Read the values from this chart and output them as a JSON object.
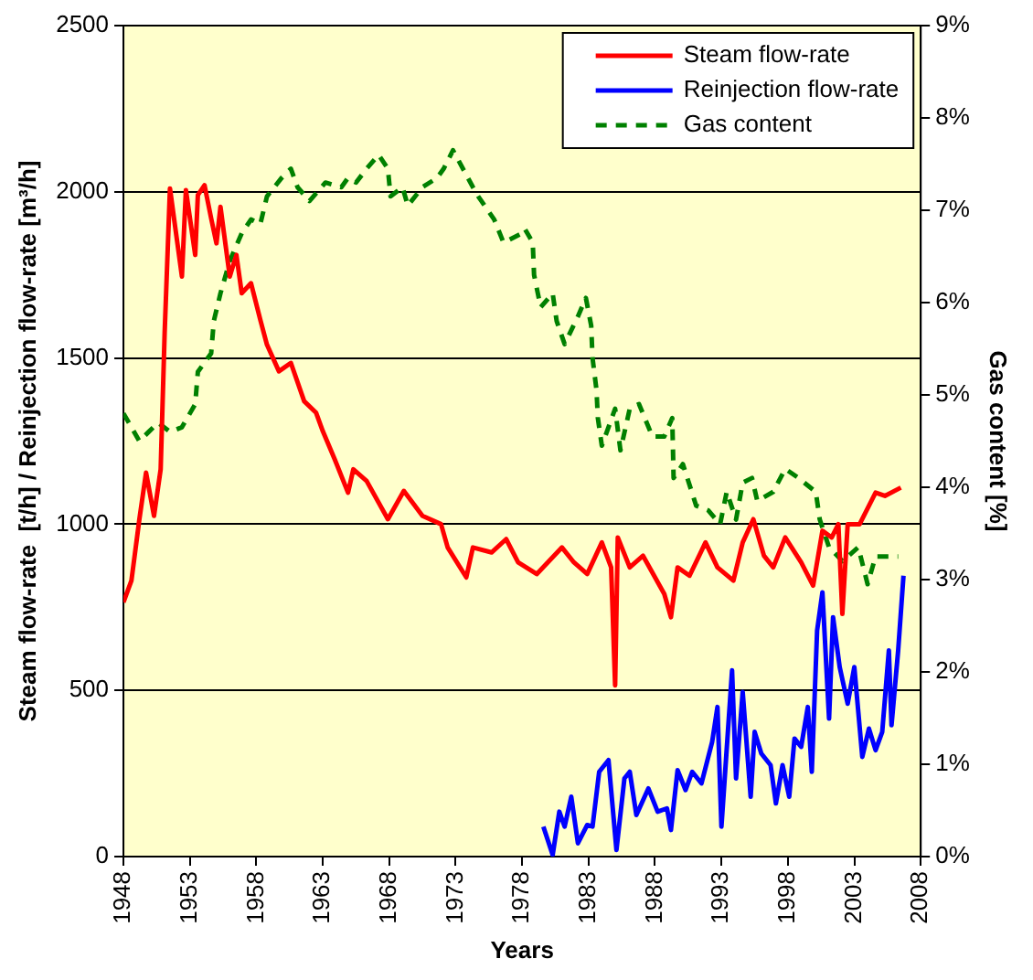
{
  "chart_data": {
    "type": "line",
    "xlabel": "Years",
    "ylabel": "Steam flow-rate  [t/h] / Reinjection flow-rate [m³/h]",
    "y2label": "Gas content [%]",
    "xlim": [
      1948,
      2008
    ],
    "xticks": [
      1948,
      1953,
      1958,
      1963,
      1968,
      1973,
      1978,
      1983,
      1988,
      1993,
      1998,
      2003,
      2008
    ],
    "ylim": [
      0,
      2500
    ],
    "yticks": [
      0,
      500,
      1000,
      1500,
      2000,
      2500
    ],
    "y2lim": [
      0,
      9
    ],
    "y2ticks": [
      {
        "value": 0,
        "label": "0%"
      },
      {
        "value": 1,
        "label": "1%"
      },
      {
        "value": 2,
        "label": "2%"
      },
      {
        "value": 3,
        "label": "3%"
      },
      {
        "value": 4,
        "label": "4%"
      },
      {
        "value": 5,
        "label": "5%"
      },
      {
        "value": 6,
        "label": "6%"
      },
      {
        "value": 7,
        "label": "7%"
      },
      {
        "value": 8,
        "label": "8%"
      },
      {
        "value": 9,
        "label": "9%"
      }
    ],
    "grid": "y",
    "legend": "top right",
    "marker": "none",
    "series": [
      {
        "name": "Steam flow-rate",
        "color": "#ff0000",
        "line_style": "solid",
        "x": [
          1948.0,
          1948.6,
          1949.2,
          1949.7,
          1950.3,
          1950.8,
          1951.1,
          1951.5,
          1952.4,
          1952.7,
          1953.4,
          1953.6,
          1954.1,
          1954.6,
          1955.0,
          1955.3,
          1956.0,
          1956.5,
          1956.9,
          1957.6,
          1958.3,
          1958.8,
          1959.7,
          1960.6,
          1961.6,
          1962.5,
          1963.0,
          1963.9,
          1964.9,
          1965.3,
          1966.3,
          1967.9,
          1969.1,
          1970.5,
          1971.9,
          1972.4,
          1973.8,
          1974.3,
          1975.7,
          1976.8,
          1977.7,
          1979.1,
          1981.0,
          1981.9,
          1982.9,
          1984.0,
          1984.7,
          1985.0,
          1985.2,
          1986.1,
          1987.1,
          1988.7,
          1989.2,
          1989.7,
          1990.6,
          1991.8,
          1992.7,
          1993.9,
          1994.6,
          1995.4,
          1996.2,
          1996.9,
          1997.8,
          1999.0,
          1999.9,
          2000.6,
          2001.3,
          2001.8,
          2002.1,
          2002.5,
          2003.4,
          2004.6,
          2005.3,
          2006.5
        ],
        "values": [
          765,
          830,
          1015,
          1155,
          1025,
          1165,
          1575,
          2010,
          1745,
          2005,
          1810,
          1990,
          2020,
          1920,
          1845,
          1955,
          1745,
          1810,
          1695,
          1725,
          1615,
          1540,
          1460,
          1485,
          1370,
          1335,
          1280,
          1195,
          1095,
          1165,
          1130,
          1015,
          1100,
          1025,
          1000,
          930,
          840,
          930,
          915,
          955,
          885,
          850,
          930,
          885,
          850,
          945,
          870,
          515,
          960,
          870,
          905,
          790,
          720,
          870,
          845,
          945,
          870,
          830,
          945,
          1015,
          905,
          870,
          960,
          885,
          815,
          980,
          960,
          1000,
          730,
          1000,
          1000,
          1095,
          1085,
          1110
        ]
      },
      {
        "name": "Reinjection flow-rate",
        "color": "#0000ff",
        "line_style": "solid",
        "x": [
          1979.6,
          1980.3,
          1980.8,
          1981.2,
          1981.7,
          1982.2,
          1982.9,
          1983.3,
          1983.8,
          1984.5,
          1985.1,
          1985.7,
          1986.1,
          1986.6,
          1987.5,
          1988.2,
          1988.9,
          1989.2,
          1989.7,
          1990.3,
          1990.8,
          1991.5,
          1992.3,
          1992.7,
          1993.0,
          1993.8,
          1994.1,
          1994.6,
          1995.2,
          1995.5,
          1996.0,
          1996.7,
          1997.1,
          1997.6,
          1998.1,
          1998.5,
          1999.0,
          1999.5,
          1999.8,
          2000.2,
          2000.6,
          2001.1,
          2001.4,
          2001.9,
          2002.5,
          2003.0,
          2003.6,
          2004.1,
          2004.6,
          2005.1,
          2005.6,
          2005.8,
          2006.3,
          2006.7
        ],
        "values": [
          90,
          5,
          135,
          90,
          180,
          40,
          95,
          90,
          255,
          290,
          20,
          235,
          255,
          125,
          205,
          135,
          145,
          80,
          260,
          200,
          255,
          220,
          345,
          450,
          90,
          560,
          235,
          495,
          180,
          375,
          310,
          275,
          160,
          275,
          180,
          355,
          330,
          450,
          255,
          680,
          795,
          415,
          720,
          570,
          460,
          570,
          300,
          385,
          320,
          375,
          620,
          395,
          620,
          845
        ]
      },
      {
        "name": "Gas content",
        "color": "#008000",
        "line_style": "dashed",
        "axis": "y2",
        "x": [
          1948.0,
          1949.2,
          1949.9,
          1950.6,
          1951.5,
          1952.4,
          1953.4,
          1953.6,
          1954.6,
          1954.8,
          1955.3,
          1956.0,
          1956.9,
          1957.6,
          1958.3,
          1958.8,
          1959.9,
          1960.6,
          1961.1,
          1962.0,
          1963.2,
          1964.4,
          1964.9,
          1965.5,
          1966.3,
          1967.2,
          1967.9,
          1968.1,
          1969.0,
          1969.4,
          1970.5,
          1971.6,
          1972.1,
          1972.8,
          1974.3,
          1974.7,
          1975.9,
          1976.6,
          1978.0,
          1978.2,
          1978.8,
          1978.9,
          1979.4,
          1980.3,
          1980.6,
          1981.2,
          1982.2,
          1982.8,
          1983.2,
          1983.3,
          1983.6,
          1983.7,
          1984.0,
          1985.0,
          1985.4,
          1986.1,
          1986.8,
          1987.8,
          1988.7,
          1989.3,
          1989.4,
          1990.1,
          1991.1,
          1992.0,
          1992.9,
          1993.4,
          1994.1,
          1994.6,
          1995.3,
          1995.7,
          1996.9,
          1997.8,
          1998.8,
          2000.1,
          2000.4,
          2001.1,
          2002.1,
          2003.3,
          2004.0,
          2004.6,
          2005.8,
          2006.3
        ],
        "values": [
          4.8,
          4.5,
          4.6,
          4.7,
          4.6,
          4.65,
          4.9,
          5.25,
          5.45,
          5.8,
          6.1,
          6.45,
          6.75,
          6.9,
          6.85,
          7.15,
          7.35,
          7.45,
          7.25,
          7.1,
          7.3,
          7.25,
          7.35,
          7.3,
          7.45,
          7.6,
          7.45,
          7.15,
          7.25,
          7.05,
          7.25,
          7.35,
          7.45,
          7.65,
          7.25,
          7.15,
          6.9,
          6.65,
          6.75,
          6.8,
          6.65,
          6.3,
          5.95,
          6.1,
          5.8,
          5.55,
          5.85,
          6.05,
          5.75,
          5.4,
          5.05,
          4.75,
          4.45,
          4.85,
          4.4,
          4.85,
          4.9,
          4.55,
          4.55,
          4.75,
          4.1,
          4.25,
          3.8,
          3.75,
          3.6,
          3.95,
          3.65,
          4.05,
          4.1,
          3.85,
          3.95,
          4.2,
          4.1,
          3.95,
          3.65,
          3.35,
          3.2,
          3.35,
          2.95,
          3.25,
          3.25,
          3.25
        ]
      }
    ]
  }
}
